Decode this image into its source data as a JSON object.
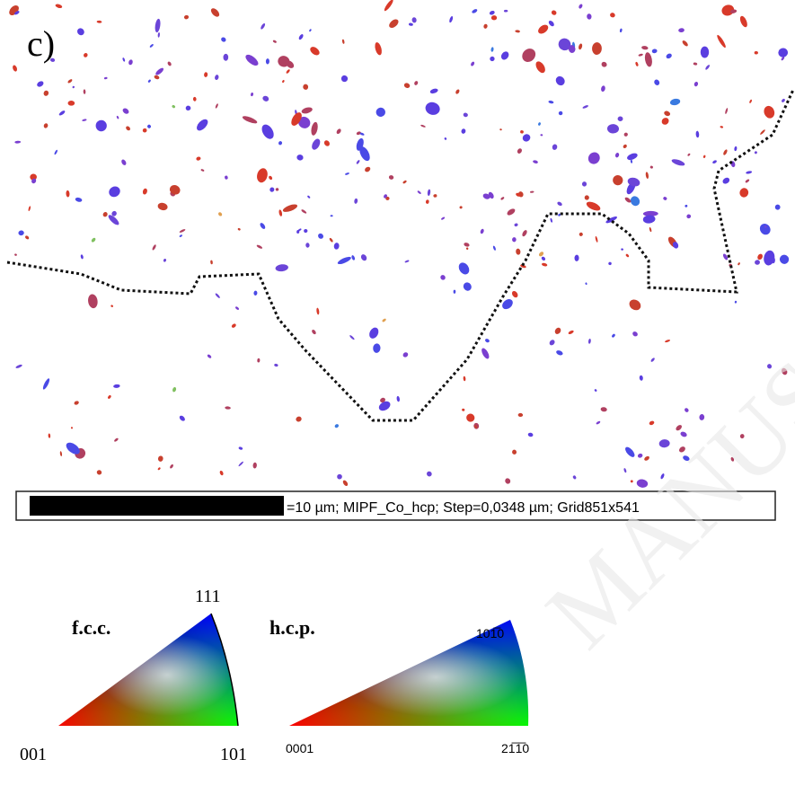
{
  "figure": {
    "panel_label": "c)",
    "scale_text": "=10 µm; MIPF_Co_hcp; Step=0,0348 µm; Grid851x541",
    "watermark": "MANUSCRIPT"
  },
  "legend": {
    "fcc": {
      "title": "f.c.c.",
      "top": "111",
      "left": "001",
      "right": "101"
    },
    "hcp": {
      "title": "h.c.p.",
      "top": "101̅0",
      "left": "0001",
      "right": "21̅1̅0"
    }
  }
}
